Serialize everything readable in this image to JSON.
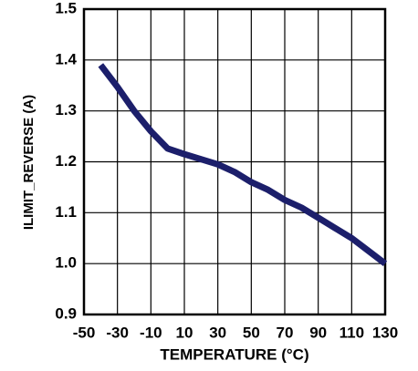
{
  "chart_data": {
    "type": "line",
    "x_label": "TEMPERATURE (°C)",
    "y_label": "ILIMIT_REVERSE (A)",
    "x": [
      -40,
      -30,
      -20,
      -10,
      0,
      10,
      20,
      30,
      40,
      50,
      60,
      70,
      80,
      90,
      100,
      110,
      120,
      130
    ],
    "series": [
      {
        "color": "#1c1f6b",
        "values": [
          1.39,
          1.347,
          1.3,
          1.26,
          1.226,
          1.215,
          1.205,
          1.195,
          1.18,
          1.16,
          1.145,
          1.125,
          1.11,
          1.09,
          1.07,
          1.05,
          1.025,
          1.0
        ]
      }
    ],
    "xlim": [
      -50,
      130
    ],
    "xticks": [
      -50,
      -30,
      -10,
      10,
      30,
      50,
      70,
      90,
      110,
      130
    ],
    "ylim": [
      0.9,
      1.5
    ],
    "yticks": [
      0.9,
      {
        "value": 1.0,
        "label": "1.0"
      },
      1.1,
      1.2,
      1.3,
      1.4,
      1.5
    ],
    "grid": true
  }
}
